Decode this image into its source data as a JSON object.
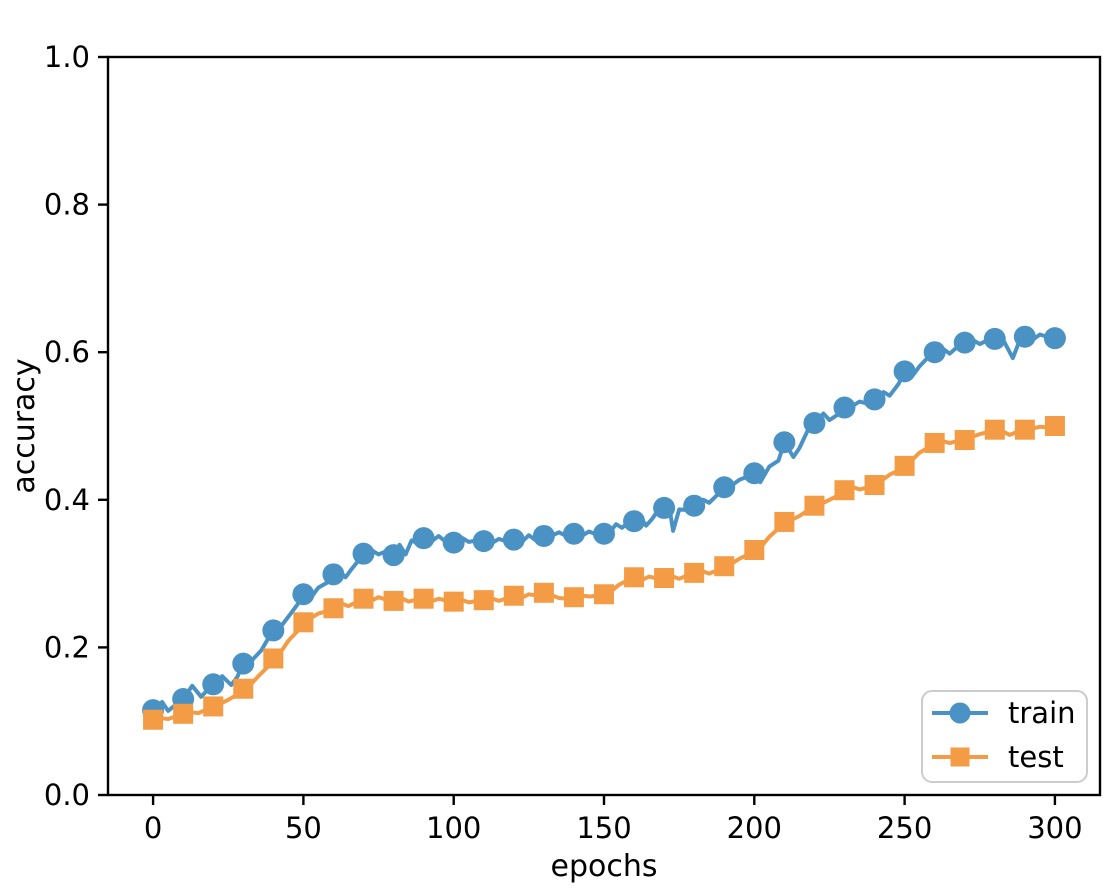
{
  "chart_data": {
    "type": "line",
    "title": "",
    "xlabel": "epochs",
    "ylabel": "accuracy",
    "xlim": [
      -15,
      315
    ],
    "ylim": [
      0,
      1
    ],
    "grid": false,
    "background_color": "#ffffff",
    "spine_color": "#000000",
    "text_color": "#000000",
    "xticks": {
      "values": [
        0,
        50,
        100,
        150,
        200,
        250,
        300
      ],
      "labels": [
        "0",
        "50",
        "100",
        "150",
        "200",
        "250",
        "300"
      ]
    },
    "yticks": {
      "values": [
        0.0,
        0.2,
        0.4,
        0.6,
        0.8,
        1.0
      ],
      "labels": [
        "0.0",
        "0.2",
        "0.4",
        "0.6",
        "0.8",
        "1.0"
      ]
    },
    "legend": {
      "position": "lower right",
      "border_color": "#cccccc",
      "fill": "#ffffff"
    },
    "series": [
      {
        "name": "train",
        "color": "#4B92C4",
        "marker": "circle",
        "marker_x": [
          0,
          10,
          20,
          30,
          40,
          50,
          60,
          70,
          80,
          90,
          100,
          110,
          120,
          130,
          140,
          150,
          160,
          170,
          180,
          190,
          200,
          210,
          220,
          230,
          240,
          250,
          260,
          270,
          280,
          290,
          300
        ],
        "marker_y": [
          0.115,
          0.13,
          0.15,
          0.178,
          0.223,
          0.272,
          0.299,
          0.327,
          0.325,
          0.348,
          0.342,
          0.344,
          0.346,
          0.351,
          0.354,
          0.354,
          0.371,
          0.389,
          0.392,
          0.417,
          0.436,
          0.478,
          0.504,
          0.525,
          0.536,
          0.574,
          0.6,
          0.613,
          0.618,
          0.621,
          0.619
        ],
        "line_x": [
          0,
          3,
          5,
          8,
          10,
          13,
          16,
          18,
          20,
          23,
          26,
          28,
          30,
          33,
          36,
          38,
          40,
          43,
          46,
          48,
          50,
          53,
          55,
          58,
          60,
          62,
          64,
          66,
          68,
          70,
          73,
          75,
          78,
          80,
          82,
          84,
          86,
          88,
          90,
          93,
          95,
          98,
          100,
          103,
          105,
          108,
          110,
          113,
          115,
          118,
          120,
          123,
          125,
          128,
          130,
          133,
          135,
          138,
          140,
          143,
          145,
          148,
          150,
          152,
          154,
          156,
          158,
          160,
          162,
          164,
          166,
          168,
          170,
          172,
          173,
          175,
          178,
          180,
          183,
          185,
          188,
          190,
          193,
          195,
          198,
          200,
          202,
          205,
          208,
          210,
          213,
          215,
          218,
          220,
          223,
          225,
          228,
          230,
          233,
          235,
          238,
          240,
          243,
          245,
          248,
          250,
          253,
          255,
          258,
          260,
          263,
          265,
          268,
          270,
          273,
          275,
          278,
          280,
          283,
          286,
          288,
          290,
          293,
          295,
          298,
          300
        ],
        "line_y": [
          0.115,
          0.126,
          0.114,
          0.124,
          0.13,
          0.148,
          0.133,
          0.142,
          0.15,
          0.161,
          0.149,
          0.16,
          0.178,
          0.183,
          0.196,
          0.21,
          0.223,
          0.231,
          0.247,
          0.258,
          0.272,
          0.27,
          0.281,
          0.288,
          0.299,
          0.303,
          0.295,
          0.306,
          0.316,
          0.327,
          0.331,
          0.326,
          0.331,
          0.325,
          0.339,
          0.326,
          0.345,
          0.341,
          0.348,
          0.345,
          0.351,
          0.341,
          0.342,
          0.348,
          0.343,
          0.345,
          0.344,
          0.342,
          0.347,
          0.343,
          0.346,
          0.344,
          0.352,
          0.343,
          0.351,
          0.352,
          0.356,
          0.35,
          0.354,
          0.352,
          0.357,
          0.352,
          0.354,
          0.356,
          0.367,
          0.362,
          0.369,
          0.371,
          0.377,
          0.365,
          0.374,
          0.386,
          0.389,
          0.383,
          0.358,
          0.387,
          0.386,
          0.392,
          0.4,
          0.396,
          0.408,
          0.417,
          0.421,
          0.427,
          0.432,
          0.436,
          0.424,
          0.445,
          0.453,
          0.478,
          0.458,
          0.47,
          0.496,
          0.504,
          0.517,
          0.508,
          0.516,
          0.525,
          0.528,
          0.533,
          0.53,
          0.536,
          0.546,
          0.541,
          0.557,
          0.574,
          0.57,
          0.581,
          0.594,
          0.6,
          0.604,
          0.598,
          0.609,
          0.613,
          0.616,
          0.611,
          0.617,
          0.618,
          0.615,
          0.592,
          0.613,
          0.621,
          0.618,
          0.624,
          0.62,
          0.619
        ]
      },
      {
        "name": "test",
        "color": "#F39C45",
        "marker": "square",
        "marker_x": [
          0,
          10,
          20,
          30,
          40,
          50,
          60,
          70,
          80,
          90,
          100,
          110,
          120,
          130,
          140,
          150,
          160,
          170,
          180,
          190,
          200,
          210,
          220,
          230,
          240,
          250,
          260,
          270,
          280,
          290,
          300
        ],
        "marker_y": [
          0.102,
          0.11,
          0.12,
          0.144,
          0.185,
          0.234,
          0.253,
          0.266,
          0.263,
          0.266,
          0.262,
          0.264,
          0.27,
          0.274,
          0.268,
          0.272,
          0.295,
          0.294,
          0.301,
          0.31,
          0.332,
          0.37,
          0.392,
          0.413,
          0.42,
          0.446,
          0.477,
          0.481,
          0.495,
          0.495,
          0.5
        ],
        "line_x": [
          0,
          3,
          5,
          8,
          10,
          13,
          15,
          18,
          20,
          23,
          25,
          28,
          30,
          33,
          35,
          38,
          40,
          43,
          45,
          48,
          50,
          53,
          55,
          58,
          60,
          63,
          65,
          68,
          70,
          73,
          75,
          78,
          80,
          83,
          85,
          88,
          90,
          93,
          95,
          98,
          100,
          103,
          105,
          108,
          110,
          113,
          115,
          118,
          120,
          123,
          125,
          128,
          130,
          133,
          135,
          138,
          140,
          143,
          145,
          148,
          150,
          153,
          155,
          158,
          160,
          163,
          165,
          168,
          170,
          173,
          175,
          178,
          180,
          183,
          185,
          188,
          190,
          193,
          195,
          198,
          200,
          203,
          205,
          208,
          210,
          213,
          215,
          218,
          220,
          223,
          225,
          228,
          230,
          233,
          235,
          238,
          240,
          243,
          245,
          248,
          250,
          253,
          255,
          258,
          260,
          263,
          265,
          268,
          270,
          273,
          275,
          278,
          280,
          283,
          285,
          288,
          290,
          293,
          295,
          298,
          300
        ],
        "line_y": [
          0.102,
          0.104,
          0.103,
          0.107,
          0.11,
          0.112,
          0.111,
          0.116,
          0.12,
          0.125,
          0.129,
          0.136,
          0.144,
          0.152,
          0.161,
          0.173,
          0.185,
          0.197,
          0.209,
          0.222,
          0.234,
          0.241,
          0.246,
          0.249,
          0.253,
          0.259,
          0.256,
          0.262,
          0.266,
          0.264,
          0.268,
          0.264,
          0.263,
          0.266,
          0.262,
          0.265,
          0.266,
          0.263,
          0.266,
          0.263,
          0.262,
          0.264,
          0.261,
          0.263,
          0.264,
          0.266,
          0.263,
          0.267,
          0.27,
          0.268,
          0.272,
          0.27,
          0.274,
          0.27,
          0.267,
          0.266,
          0.268,
          0.27,
          0.269,
          0.27,
          0.272,
          0.278,
          0.285,
          0.291,
          0.295,
          0.292,
          0.296,
          0.293,
          0.294,
          0.296,
          0.293,
          0.298,
          0.301,
          0.303,
          0.3,
          0.305,
          0.31,
          0.315,
          0.32,
          0.326,
          0.332,
          0.34,
          0.35,
          0.361,
          0.37,
          0.374,
          0.378,
          0.386,
          0.392,
          0.396,
          0.4,
          0.406,
          0.413,
          0.417,
          0.414,
          0.417,
          0.42,
          0.428,
          0.434,
          0.44,
          0.446,
          0.456,
          0.464,
          0.471,
          0.477,
          0.479,
          0.477,
          0.48,
          0.481,
          0.486,
          0.489,
          0.492,
          0.495,
          0.492,
          0.488,
          0.493,
          0.495,
          0.497,
          0.499,
          0.498,
          0.5
        ]
      }
    ]
  }
}
